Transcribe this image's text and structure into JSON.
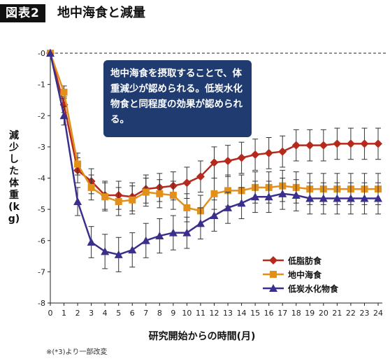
{
  "figure": {
    "badge": "図表2",
    "title": "地中海食と減量",
    "callout": "地中海食を摂取することで、体重減少が認められる。低炭水化物食と同程度の効果が認められる。",
    "source_note": "※(*3)より一部改変"
  },
  "chart_data": {
    "type": "line",
    "title": "",
    "xlabel": "研究開始からの時間(月)",
    "ylabel": "減少した体重(kg)",
    "x": [
      0,
      1,
      2,
      3,
      4,
      5,
      6,
      7,
      8,
      9,
      10,
      11,
      12,
      13,
      14,
      15,
      16,
      17,
      18,
      19,
      20,
      21,
      22,
      23,
      24
    ],
    "x_tick_labels": [
      "0",
      "1",
      "2",
      "3",
      "4",
      "5",
      "6",
      "7",
      "8",
      "9",
      "10",
      "11",
      "12",
      "13",
      "14",
      "15",
      "16",
      "17",
      "18",
      "19",
      "20",
      "21",
      "22",
      "23",
      "24"
    ],
    "xlim": [
      0,
      24
    ],
    "ylim": [
      -8,
      0.2
    ],
    "y_ticks": [
      0,
      -1,
      -2,
      -3,
      -4,
      -5,
      -6,
      -7,
      -8
    ],
    "y_tick_labels": [
      "-0",
      "-1",
      "-2",
      "-3",
      "-4",
      "-5",
      "-6",
      "-7",
      "-8"
    ],
    "baseline_dashed": 0,
    "legend_position": "bottom-right",
    "series": [
      {
        "name": "低脂肪食",
        "marker": "diamond",
        "color": "#b52a1c",
        "values": [
          0,
          -1.65,
          -3.75,
          -4.1,
          -4.55,
          -4.55,
          -4.6,
          -4.35,
          -4.3,
          -4.25,
          -4.15,
          -3.95,
          -3.5,
          -3.45,
          -3.35,
          -3.25,
          -3.2,
          -3.15,
          -2.95,
          -2.95,
          -2.95,
          -2.9,
          -2.9,
          -2.9,
          -2.9
        ],
        "error": [
          0,
          0.25,
          0.4,
          0.4,
          0.45,
          0.45,
          0.45,
          0.45,
          0.45,
          0.45,
          0.5,
          0.5,
          0.5,
          0.5,
          0.5,
          0.5,
          0.5,
          0.5,
          0.5,
          0.5,
          0.5,
          0.5,
          0.5,
          0.5,
          0.5
        ]
      },
      {
        "name": "地中海食",
        "marker": "square",
        "color": "#e3901a",
        "values": [
          0,
          -1.25,
          -3.55,
          -4.3,
          -4.6,
          -4.75,
          -4.7,
          -4.45,
          -4.5,
          -4.55,
          -4.95,
          -5.05,
          -4.5,
          -4.4,
          -4.4,
          -4.3,
          -4.3,
          -4.25,
          -4.3,
          -4.35,
          -4.35,
          -4.35,
          -4.35,
          -4.35,
          -4.35
        ],
        "error": [
          0,
          0.2,
          0.35,
          0.4,
          0.45,
          0.45,
          0.45,
          0.45,
          0.45,
          0.45,
          0.45,
          0.5,
          0.5,
          0.5,
          0.5,
          0.5,
          0.5,
          0.5,
          0.5,
          0.5,
          0.5,
          0.5,
          0.5,
          0.5,
          0.5
        ]
      },
      {
        "name": "低炭水化物食",
        "marker": "triangle",
        "color": "#3a2f8c",
        "values": [
          0,
          -2.0,
          -4.75,
          -6.05,
          -6.35,
          -6.45,
          -6.3,
          -6.0,
          -5.85,
          -5.75,
          -5.75,
          -5.45,
          -5.2,
          -4.95,
          -4.8,
          -4.6,
          -4.6,
          -4.5,
          -4.55,
          -4.65,
          -4.65,
          -4.65,
          -4.65,
          -4.65,
          -4.65
        ],
        "error": [
          0,
          0.3,
          0.45,
          0.5,
          0.55,
          0.55,
          0.55,
          0.55,
          0.55,
          0.55,
          0.5,
          0.5,
          0.5,
          0.5,
          0.5,
          0.5,
          0.5,
          0.5,
          0.5,
          0.5,
          0.5,
          0.5,
          0.5,
          0.5,
          0.5
        ]
      }
    ]
  }
}
